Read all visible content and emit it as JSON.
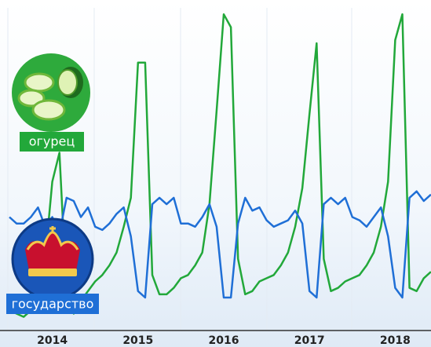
{
  "chart_data": {
    "type": "line",
    "categories": [
      null,
      null,
      null,
      null,
      null,
      null,
      "2014",
      null,
      null,
      null,
      null,
      null,
      null,
      null,
      null,
      null,
      null,
      null,
      "2015",
      null,
      null,
      null,
      null,
      null,
      null,
      null,
      null,
      null,
      null,
      null,
      "2016",
      null,
      null,
      null,
      null,
      null,
      null,
      null,
      null,
      null,
      null,
      null,
      "2017",
      null,
      null,
      null,
      null,
      null,
      null,
      null,
      null,
      null,
      null,
      null,
      "2018",
      null,
      null,
      null,
      null,
      null
    ],
    "ylim": [
      0,
      100
    ],
    "series": [
      {
        "name": "огурец",
        "color": "#22a83a",
        "values": [
          6,
          5,
          4,
          6,
          10,
          22,
          46,
          55,
          11,
          5,
          9,
          12,
          15,
          17,
          20,
          24,
          32,
          41,
          83,
          83,
          17,
          11,
          11,
          13,
          16,
          17,
          20,
          24,
          39,
          68,
          98,
          94,
          22,
          11,
          12,
          15,
          16,
          17,
          20,
          24,
          32,
          44,
          67,
          89,
          22,
          12,
          13,
          15,
          16,
          17,
          20,
          24,
          32,
          46,
          90,
          98,
          13,
          12,
          16,
          18
        ]
      },
      {
        "name": "государство",
        "color": "#1f6fd6",
        "values": [
          35,
          33,
          33,
          35,
          38,
          32,
          35,
          30,
          41,
          40,
          35,
          38,
          32,
          31,
          33,
          36,
          38,
          29,
          12,
          10,
          39,
          41,
          39,
          41,
          33,
          33,
          32,
          35,
          39,
          32,
          10,
          10,
          33,
          41,
          37,
          38,
          34,
          32,
          33,
          34,
          37,
          33,
          12,
          10,
          39,
          41,
          39,
          41,
          35,
          34,
          32,
          35,
          38,
          29,
          13,
          10,
          41,
          43,
          40,
          42
        ]
      }
    ]
  }
}
